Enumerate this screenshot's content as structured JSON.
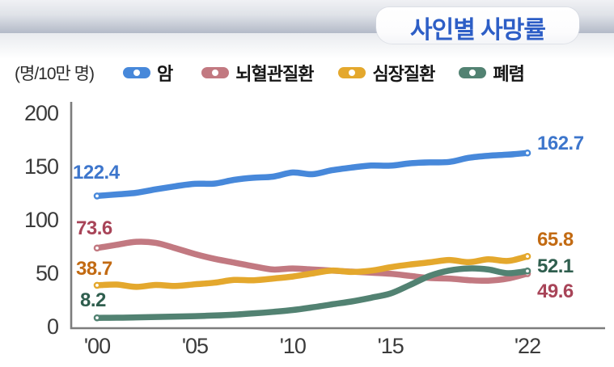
{
  "header": {
    "title": "사인별 사망률"
  },
  "colors": {
    "title_blue": "#2d5ec6",
    "band_top": "#f0f1f4",
    "band_bottom": "#b3bac8",
    "axis": "#7d7d7d",
    "tick_text": "#3b3b3b"
  },
  "chart_data": {
    "type": "line",
    "title": "사인별 사망률",
    "unit_label": "(명/10만 명)",
    "xlabel": "",
    "ylabel": "(명/10만 명)",
    "ylim": [
      0,
      200
    ],
    "y_ticks": [
      0,
      50,
      100,
      150,
      200
    ],
    "x_tick_labels": [
      "'00",
      "'05",
      "'10",
      "'15",
      "'22"
    ],
    "x_tick_years": [
      2000,
      2005,
      2010,
      2015,
      2022
    ],
    "x": [
      2000,
      2001,
      2002,
      2003,
      2004,
      2005,
      2006,
      2007,
      2008,
      2009,
      2010,
      2011,
      2012,
      2013,
      2014,
      2015,
      2016,
      2017,
      2018,
      2019,
      2020,
      2021,
      2022
    ],
    "grid": false,
    "legend_position": "top",
    "series": [
      {
        "name": "암",
        "color": "#4788da",
        "label_color": "#3d76cc",
        "start_label": "122.4",
        "end_label": "162.7",
        "values": [
          122.4,
          123.9,
          125.4,
          128.6,
          131.5,
          133.8,
          134.0,
          137.5,
          139.5,
          140.5,
          144.4,
          142.8,
          146.5,
          149.0,
          150.9,
          150.8,
          153.0,
          153.9,
          154.3,
          158.2,
          160.1,
          161.1,
          162.7
        ]
      },
      {
        "name": "뇌혈관질환",
        "color": "#c27981",
        "label_color": "#a84458",
        "start_label": "73.6",
        "end_label": "49.6",
        "values": [
          73.6,
          76.7,
          79.5,
          78.5,
          73.5,
          68.0,
          63.5,
          60.0,
          56.5,
          53.5,
          54.5,
          53.5,
          52.5,
          51.5,
          50.5,
          49.5,
          47.5,
          45.5,
          45.0,
          43.5,
          43.0,
          45.0,
          49.6
        ]
      },
      {
        "name": "심장질환",
        "color": "#e4a82d",
        "label_color": "#c26a12",
        "start_label": "38.7",
        "end_label": "65.8",
        "values": [
          38.7,
          39.4,
          37.2,
          39.0,
          38.0,
          39.6,
          41.1,
          43.7,
          43.4,
          45.0,
          46.9,
          49.8,
          52.5,
          51.2,
          52.4,
          55.6,
          58.2,
          60.2,
          62.4,
          60.4,
          63.0,
          61.5,
          65.8
        ]
      },
      {
        "name": "폐렴",
        "color": "#528272",
        "label_color": "#2f5e4e",
        "start_label": "8.2",
        "end_label": "52.1",
        "values": [
          8.2,
          8.3,
          8.6,
          9.0,
          9.4,
          9.8,
          10.4,
          11.2,
          12.4,
          13.8,
          15.5,
          18.0,
          20.8,
          23.5,
          27.0,
          31.0,
          39.0,
          47.5,
          52.5,
          54.5,
          53.5,
          50.0,
          52.1
        ]
      }
    ]
  }
}
